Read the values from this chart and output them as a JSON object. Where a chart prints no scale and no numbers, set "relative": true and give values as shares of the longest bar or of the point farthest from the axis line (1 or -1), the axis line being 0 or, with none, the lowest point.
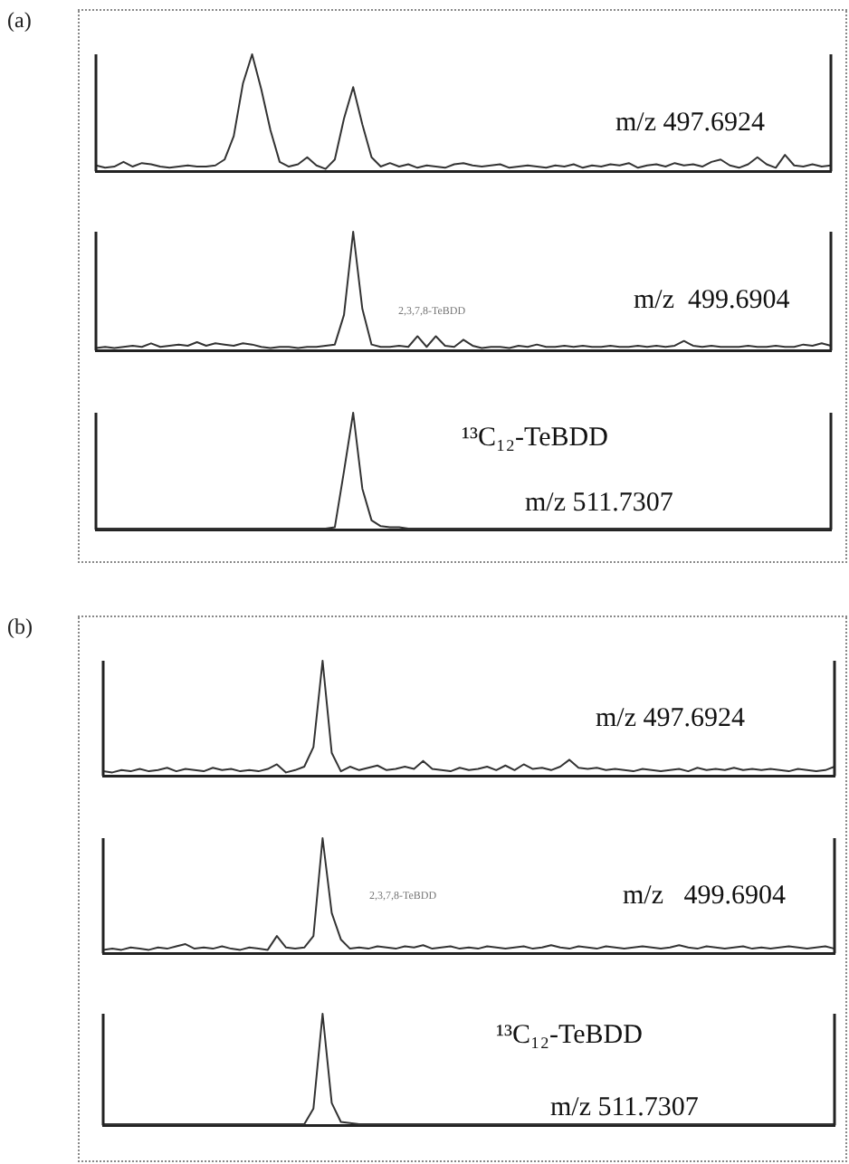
{
  "chart_data": [
    {
      "type": "line",
      "title": "(a)",
      "relative": true,
      "color": "#333333",
      "marker": "none",
      "grid": false,
      "legend": false,
      "annotations": [
        "m/z 497.6924"
      ],
      "categories": [
        null,
        null,
        null,
        null,
        null,
        null,
        null,
        null,
        null,
        null,
        null,
        null,
        null,
        null,
        null,
        null,
        null,
        null,
        null,
        null,
        null,
        null,
        null,
        null,
        null,
        null,
        null,
        null,
        null,
        null,
        null,
        null,
        null,
        null,
        null,
        null,
        null,
        null,
        null,
        null,
        null,
        null,
        null,
        null,
        null,
        null,
        null,
        null,
        null,
        null,
        null,
        null,
        null,
        null,
        null,
        null,
        null,
        null,
        null,
        null,
        null,
        null,
        null,
        null,
        null,
        null,
        null,
        null,
        null,
        null,
        null,
        null,
        null,
        null,
        null,
        null,
        null,
        null,
        null,
        null,
        null
      ],
      "values": [
        0.05,
        0.03,
        0.04,
        0.08,
        0.04,
        0.07,
        0.06,
        0.04,
        0.03,
        0.04,
        0.05,
        0.04,
        0.04,
        0.05,
        0.1,
        0.3,
        0.75,
        1,
        0.7,
        0.35,
        0.08,
        0.04,
        0.06,
        0.12,
        0.05,
        0.02,
        0.1,
        0.45,
        0.72,
        0.4,
        0.12,
        0.04,
        0.07,
        0.04,
        0.06,
        0.03,
        0.05,
        0.04,
        0.03,
        0.06,
        0.07,
        0.05,
        0.04,
        0.05,
        0.06,
        0.03,
        0.04,
        0.05,
        0.04,
        0.03,
        0.05,
        0.04,
        0.06,
        0.03,
        0.05,
        0.04,
        0.06,
        0.05,
        0.07,
        0.03,
        0.05,
        0.06,
        0.04,
        0.07,
        0.05,
        0.06,
        0.04,
        0.08,
        0.1,
        0.05,
        0.03,
        0.06,
        0.12,
        0.06,
        0.03,
        0.14,
        0.05,
        0.04,
        0.06,
        0.04,
        0.05
      ]
    },
    {
      "type": "line",
      "relative": true,
      "color": "#333333",
      "marker": "none",
      "grid": false,
      "legend": false,
      "annotations": [
        "2,3,7,8-TeBDD",
        "m/z  499.6904"
      ],
      "categories": [
        null,
        null,
        null,
        null,
        null,
        null,
        null,
        null,
        null,
        null,
        null,
        null,
        null,
        null,
        null,
        null,
        null,
        null,
        null,
        null,
        null,
        null,
        null,
        null,
        null,
        null,
        null,
        null,
        null,
        null,
        null,
        null,
        null,
        null,
        null,
        null,
        null,
        null,
        null,
        null,
        null,
        null,
        null,
        null,
        null,
        null,
        null,
        null,
        null,
        null,
        null,
        null,
        null,
        null,
        null,
        null,
        null,
        null,
        null,
        null,
        null,
        null,
        null,
        null,
        null,
        null,
        null,
        null,
        null,
        null,
        null,
        null,
        null,
        null,
        null,
        null,
        null,
        null,
        null,
        null,
        null
      ],
      "values": [
        0.02,
        0.03,
        0.02,
        0.03,
        0.04,
        0.03,
        0.06,
        0.03,
        0.04,
        0.05,
        0.04,
        0.07,
        0.04,
        0.06,
        0.05,
        0.04,
        0.06,
        0.05,
        0.03,
        0.02,
        0.03,
        0.03,
        0.02,
        0.03,
        0.03,
        0.04,
        0.05,
        0.3,
        1,
        0.35,
        0.05,
        0.03,
        0.03,
        0.04,
        0.03,
        0.12,
        0.03,
        0.12,
        0.04,
        0.03,
        0.09,
        0.04,
        0.02,
        0.03,
        0.03,
        0.02,
        0.04,
        0.03,
        0.05,
        0.03,
        0.03,
        0.04,
        0.03,
        0.04,
        0.03,
        0.03,
        0.04,
        0.03,
        0.03,
        0.04,
        0.03,
        0.04,
        0.03,
        0.04,
        0.08,
        0.04,
        0.03,
        0.04,
        0.03,
        0.03,
        0.03,
        0.04,
        0.03,
        0.03,
        0.04,
        0.03,
        0.03,
        0.05,
        0.04,
        0.06,
        0.04
      ]
    },
    {
      "type": "line",
      "relative": true,
      "color": "#333333",
      "marker": "none",
      "grid": false,
      "legend": false,
      "annotations": [
        "¹³C₁₂-TeBDD",
        "m/z 511.7307"
      ],
      "categories": [
        null,
        null,
        null,
        null,
        null,
        null,
        null,
        null,
        null,
        null,
        null,
        null,
        null,
        null,
        null,
        null,
        null,
        null,
        null,
        null,
        null,
        null,
        null,
        null,
        null,
        null,
        null,
        null,
        null,
        null,
        null,
        null,
        null,
        null,
        null,
        null,
        null,
        null,
        null,
        null,
        null,
        null,
        null,
        null,
        null,
        null,
        null,
        null,
        null,
        null,
        null,
        null,
        null,
        null,
        null,
        null,
        null,
        null,
        null,
        null,
        null,
        null,
        null,
        null,
        null,
        null,
        null,
        null,
        null,
        null,
        null,
        null,
        null,
        null,
        null,
        null,
        null,
        null,
        null,
        null,
        null
      ],
      "values": [
        0.01,
        0.01,
        0.01,
        0.01,
        0.01,
        0.01,
        0.01,
        0.01,
        0.01,
        0.01,
        0.01,
        0.01,
        0.01,
        0.01,
        0.01,
        0.01,
        0.01,
        0.01,
        0.01,
        0.01,
        0.01,
        0.01,
        0.01,
        0.01,
        0.01,
        0.01,
        0.02,
        0.5,
        1,
        0.35,
        0.08,
        0.03,
        0.02,
        0.02,
        0.01,
        0.01,
        0.01,
        0.01,
        0.01,
        0.01,
        0.01,
        0.01,
        0.01,
        0.01,
        0.01,
        0.01,
        0.01,
        0.01,
        0.01,
        0.01,
        0.01,
        0.01,
        0.01,
        0.01,
        0.01,
        0.01,
        0.01,
        0.01,
        0.01,
        0.01,
        0.01,
        0.01,
        0.01,
        0.01,
        0.01,
        0.01,
        0.01,
        0.01,
        0.01,
        0.01,
        0.01,
        0.01,
        0.01,
        0.01,
        0.01,
        0.01,
        0.01,
        0.01,
        0.01,
        0.01,
        0.01
      ]
    },
    {
      "type": "line",
      "title": "(b)",
      "relative": true,
      "color": "#333333",
      "marker": "none",
      "grid": false,
      "legend": false,
      "annotations": [
        "m/z 497.6924"
      ],
      "categories": [
        null,
        null,
        null,
        null,
        null,
        null,
        null,
        null,
        null,
        null,
        null,
        null,
        null,
        null,
        null,
        null,
        null,
        null,
        null,
        null,
        null,
        null,
        null,
        null,
        null,
        null,
        null,
        null,
        null,
        null,
        null,
        null,
        null,
        null,
        null,
        null,
        null,
        null,
        null,
        null,
        null,
        null,
        null,
        null,
        null,
        null,
        null,
        null,
        null,
        null,
        null,
        null,
        null,
        null,
        null,
        null,
        null,
        null,
        null,
        null,
        null,
        null,
        null,
        null,
        null,
        null,
        null,
        null,
        null,
        null,
        null,
        null,
        null,
        null,
        null,
        null,
        null,
        null,
        null,
        null,
        null
      ],
      "values": [
        0.04,
        0.03,
        0.05,
        0.04,
        0.06,
        0.04,
        0.05,
        0.07,
        0.04,
        0.06,
        0.05,
        0.04,
        0.07,
        0.05,
        0.06,
        0.04,
        0.05,
        0.04,
        0.06,
        0.1,
        0.03,
        0.05,
        0.08,
        0.25,
        1,
        0.2,
        0.04,
        0.08,
        0.05,
        0.07,
        0.09,
        0.05,
        0.06,
        0.08,
        0.06,
        0.13,
        0.06,
        0.05,
        0.04,
        0.07,
        0.05,
        0.06,
        0.08,
        0.05,
        0.09,
        0.05,
        0.1,
        0.06,
        0.07,
        0.05,
        0.08,
        0.14,
        0.07,
        0.06,
        0.07,
        0.05,
        0.06,
        0.05,
        0.04,
        0.06,
        0.05,
        0.04,
        0.05,
        0.06,
        0.04,
        0.07,
        0.05,
        0.06,
        0.05,
        0.07,
        0.05,
        0.06,
        0.05,
        0.06,
        0.05,
        0.04,
        0.06,
        0.05,
        0.04,
        0.05,
        0.08
      ]
    },
    {
      "type": "line",
      "relative": true,
      "color": "#333333",
      "marker": "none",
      "grid": false,
      "legend": false,
      "annotations": [
        "2,3,7,8-TeBDD",
        "m/z   499.6904"
      ],
      "categories": [
        null,
        null,
        null,
        null,
        null,
        null,
        null,
        null,
        null,
        null,
        null,
        null,
        null,
        null,
        null,
        null,
        null,
        null,
        null,
        null,
        null,
        null,
        null,
        null,
        null,
        null,
        null,
        null,
        null,
        null,
        null,
        null,
        null,
        null,
        null,
        null,
        null,
        null,
        null,
        null,
        null,
        null,
        null,
        null,
        null,
        null,
        null,
        null,
        null,
        null,
        null,
        null,
        null,
        null,
        null,
        null,
        null,
        null,
        null,
        null,
        null,
        null,
        null,
        null,
        null,
        null,
        null,
        null,
        null,
        null,
        null,
        null,
        null,
        null,
        null,
        null,
        null,
        null,
        null,
        null,
        null
      ],
      "values": [
        0.03,
        0.04,
        0.03,
        0.05,
        0.04,
        0.03,
        0.05,
        0.04,
        0.06,
        0.08,
        0.04,
        0.05,
        0.04,
        0.06,
        0.04,
        0.03,
        0.05,
        0.04,
        0.03,
        0.15,
        0.05,
        0.04,
        0.05,
        0.15,
        1,
        0.35,
        0.12,
        0.04,
        0.05,
        0.04,
        0.06,
        0.05,
        0.04,
        0.06,
        0.05,
        0.07,
        0.04,
        0.05,
        0.06,
        0.04,
        0.05,
        0.04,
        0.06,
        0.05,
        0.04,
        0.05,
        0.06,
        0.04,
        0.05,
        0.07,
        0.05,
        0.04,
        0.06,
        0.05,
        0.04,
        0.06,
        0.05,
        0.04,
        0.05,
        0.06,
        0.05,
        0.04,
        0.05,
        0.07,
        0.05,
        0.04,
        0.06,
        0.05,
        0.04,
        0.05,
        0.06,
        0.04,
        0.05,
        0.04,
        0.05,
        0.06,
        0.05,
        0.04,
        0.05,
        0.06,
        0.04
      ]
    },
    {
      "type": "line",
      "relative": true,
      "color": "#333333",
      "marker": "none",
      "grid": false,
      "legend": false,
      "annotations": [
        "¹³C₁₂-TeBDD",
        "m/z 511.7307"
      ],
      "categories": [
        null,
        null,
        null,
        null,
        null,
        null,
        null,
        null,
        null,
        null,
        null,
        null,
        null,
        null,
        null,
        null,
        null,
        null,
        null,
        null,
        null,
        null,
        null,
        null,
        null,
        null,
        null,
        null,
        null,
        null,
        null,
        null,
        null,
        null,
        null,
        null,
        null,
        null,
        null,
        null,
        null,
        null,
        null,
        null,
        null,
        null,
        null,
        null,
        null,
        null,
        null,
        null,
        null,
        null,
        null,
        null,
        null,
        null,
        null,
        null,
        null,
        null,
        null,
        null,
        null,
        null,
        null,
        null,
        null,
        null,
        null,
        null,
        null,
        null,
        null,
        null,
        null,
        null,
        null,
        null,
        null
      ],
      "values": [
        0.01,
        0.01,
        0.01,
        0.01,
        0.01,
        0.01,
        0.01,
        0.01,
        0.01,
        0.01,
        0.01,
        0.01,
        0.01,
        0.01,
        0.01,
        0.01,
        0.01,
        0.01,
        0.01,
        0.01,
        0.01,
        0.01,
        0.01,
        0.15,
        1,
        0.2,
        0.03,
        0.02,
        0.01,
        0.01,
        0.01,
        0.01,
        0.01,
        0.01,
        0.01,
        0.01,
        0.01,
        0.01,
        0.01,
        0.01,
        0.01,
        0.01,
        0.01,
        0.01,
        0.01,
        0.01,
        0.01,
        0.01,
        0.01,
        0.01,
        0.01,
        0.01,
        0.01,
        0.01,
        0.01,
        0.01,
        0.01,
        0.01,
        0.01,
        0.01,
        0.01,
        0.01,
        0.01,
        0.01,
        0.01,
        0.01,
        0.01,
        0.01,
        0.01,
        0.01,
        0.01,
        0.01,
        0.01,
        0.01,
        0.01,
        0.01,
        0.01,
        0.01,
        0.01,
        0.01,
        0.01
      ]
    }
  ]
}
